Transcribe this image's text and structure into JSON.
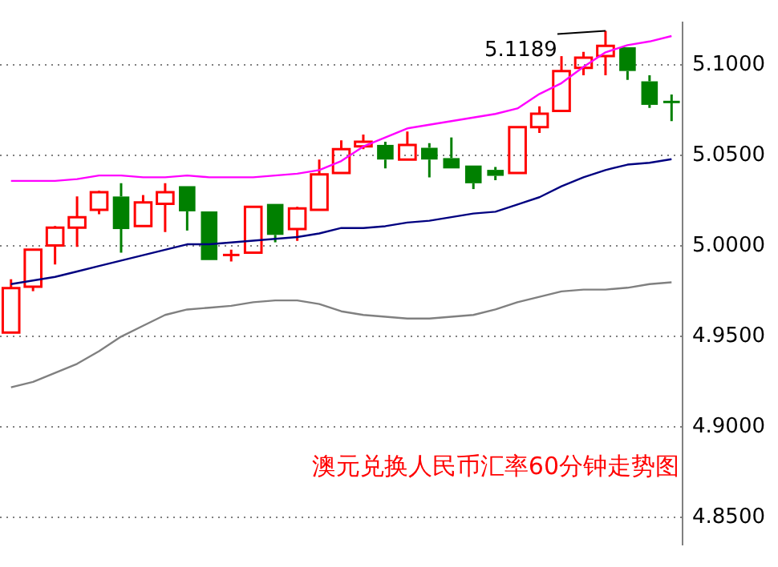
{
  "chart_data": {
    "type": "candlestick",
    "title": "澳元兑换人民币汇率60分钟走势图",
    "categories": [
      null,
      null,
      null,
      null,
      null,
      null,
      null,
      null,
      null,
      null,
      null,
      null,
      null,
      null,
      null,
      null,
      null,
      null,
      null,
      null,
      null,
      null,
      null,
      null,
      null,
      null,
      null,
      null,
      null,
      null,
      null
    ],
    "ohlc": [
      [
        4.9523,
        4.9817,
        4.9523,
        4.9768
      ],
      [
        4.9776,
        4.998,
        4.9751,
        4.998
      ],
      [
        5.0004,
        5.0111,
        4.9898,
        5.0102
      ],
      [
        5.0102,
        5.0274,
        4.9996,
        5.016
      ],
      [
        5.02,
        5.0306,
        5.0176,
        5.0298
      ],
      [
        5.0274,
        5.0347,
        4.9964,
        5.0094
      ],
      [
        5.0111,
        5.0282,
        5.0111,
        5.0241
      ],
      [
        5.0233,
        5.0347,
        5.0078,
        5.0298
      ],
      [
        5.0331,
        5.0331,
        5.0086,
        5.0192
      ],
      [
        5.0192,
        5.0192,
        4.9923,
        4.9923
      ],
      [
        4.9951,
        4.998,
        4.9915,
        4.9951
      ],
      [
        4.9964,
        5.0217,
        4.9964,
        5.0217
      ],
      [
        5.0233,
        5.0233,
        5.0021,
        5.0062
      ],
      [
        5.0094,
        5.0217,
        5.0029,
        5.0208
      ],
      [
        5.02,
        5.0478,
        5.02,
        5.0396
      ],
      [
        5.0404,
        5.0584,
        5.0404,
        5.0535
      ],
      [
        5.0551,
        5.0616,
        5.0535,
        5.0576
      ],
      [
        5.0559,
        5.0576,
        5.0429,
        5.0478
      ],
      [
        5.0478,
        5.0633,
        5.0478,
        5.0559
      ],
      [
        5.0543,
        5.0568,
        5.038,
        5.0478
      ],
      [
        5.0486,
        5.06,
        5.0429,
        5.0429
      ],
      [
        5.0445,
        5.0445,
        5.0315,
        5.0347
      ],
      [
        5.0421,
        5.0437,
        5.0364,
        5.0388
      ],
      [
        5.0404,
        5.0657,
        5.0404,
        5.0657
      ],
      [
        5.0657,
        5.0772,
        5.0625,
        5.0731
      ],
      [
        5.0747,
        5.1049,
        5.0747,
        5.0967
      ],
      [
        5.0984,
        5.1073,
        5.0943,
        5.1041
      ],
      [
        5.1049,
        5.1189,
        5.0943,
        5.1106
      ],
      [
        5.1098,
        5.1098,
        5.0918,
        5.0967
      ],
      [
        5.091,
        5.0943,
        5.0763,
        5.078
      ],
      [
        5.0796,
        5.0837,
        5.069,
        5.0796
      ]
    ],
    "colors": [
      "#ff0000",
      "#ff0000",
      "#ff0000",
      "#ff0000",
      "#ff0000",
      "#008000",
      "#ff0000",
      "#ff0000",
      "#008000",
      "#008000",
      "#ff0000",
      "#ff0000",
      "#008000",
      "#ff0000",
      "#ff0000",
      "#ff0000",
      "#ff0000",
      "#008000",
      "#ff0000",
      "#008000",
      "#008000",
      "#008000",
      "#008000",
      "#ff0000",
      "#ff0000",
      "#ff0000",
      "#ff0000",
      "#ff0000",
      "#008000",
      "#008000",
      "#008000"
    ],
    "series": [
      {
        "type": "line",
        "color": "#ff00ff",
        "values": [
          5.036,
          5.036,
          5.036,
          5.037,
          5.039,
          5.039,
          5.038,
          5.038,
          5.039,
          5.038,
          5.038,
          5.038,
          5.039,
          5.04,
          5.042,
          5.047,
          5.055,
          5.06,
          5.065,
          5.067,
          5.069,
          5.071,
          5.073,
          5.076,
          5.084,
          5.09,
          5.099,
          5.107,
          5.111,
          5.113,
          5.116
        ]
      },
      {
        "type": "line",
        "color": "#000080",
        "values": [
          4.979,
          4.981,
          4.983,
          4.986,
          4.989,
          4.992,
          4.995,
          4.998,
          5.001,
          5.001,
          5.002,
          5.003,
          5.004,
          5.005,
          5.007,
          5.01,
          5.01,
          5.011,
          5.013,
          5.014,
          5.016,
          5.018,
          5.019,
          5.023,
          5.027,
          5.033,
          5.038,
          5.042,
          5.045,
          5.046,
          5.048
        ]
      },
      {
        "type": "line",
        "color": "#808080",
        "values": [
          4.922,
          4.925,
          4.93,
          4.935,
          4.942,
          4.95,
          4.956,
          4.962,
          4.965,
          4.966,
          4.967,
          4.969,
          4.97,
          4.97,
          4.968,
          4.964,
          4.962,
          4.961,
          4.96,
          4.96,
          4.961,
          4.962,
          4.965,
          4.969,
          4.972,
          4.975,
          4.976,
          4.976,
          4.977,
          4.979,
          4.98
        ]
      }
    ],
    "ylim": [
      4.835,
      5.1237
    ],
    "yticks": [
      {
        "value": 4.85,
        "label": "4.8500"
      },
      {
        "value": 4.9,
        "label": "4.9000"
      },
      {
        "value": 4.95,
        "label": "4.9500"
      },
      {
        "value": 5.0,
        "label": "5.0000"
      },
      {
        "value": 5.05,
        "label": "5.0500"
      },
      {
        "value": 5.1,
        "label": "5.1000"
      }
    ],
    "grid": "y",
    "tick_labels": "y",
    "annotations": [
      "5.1189"
    ]
  }
}
